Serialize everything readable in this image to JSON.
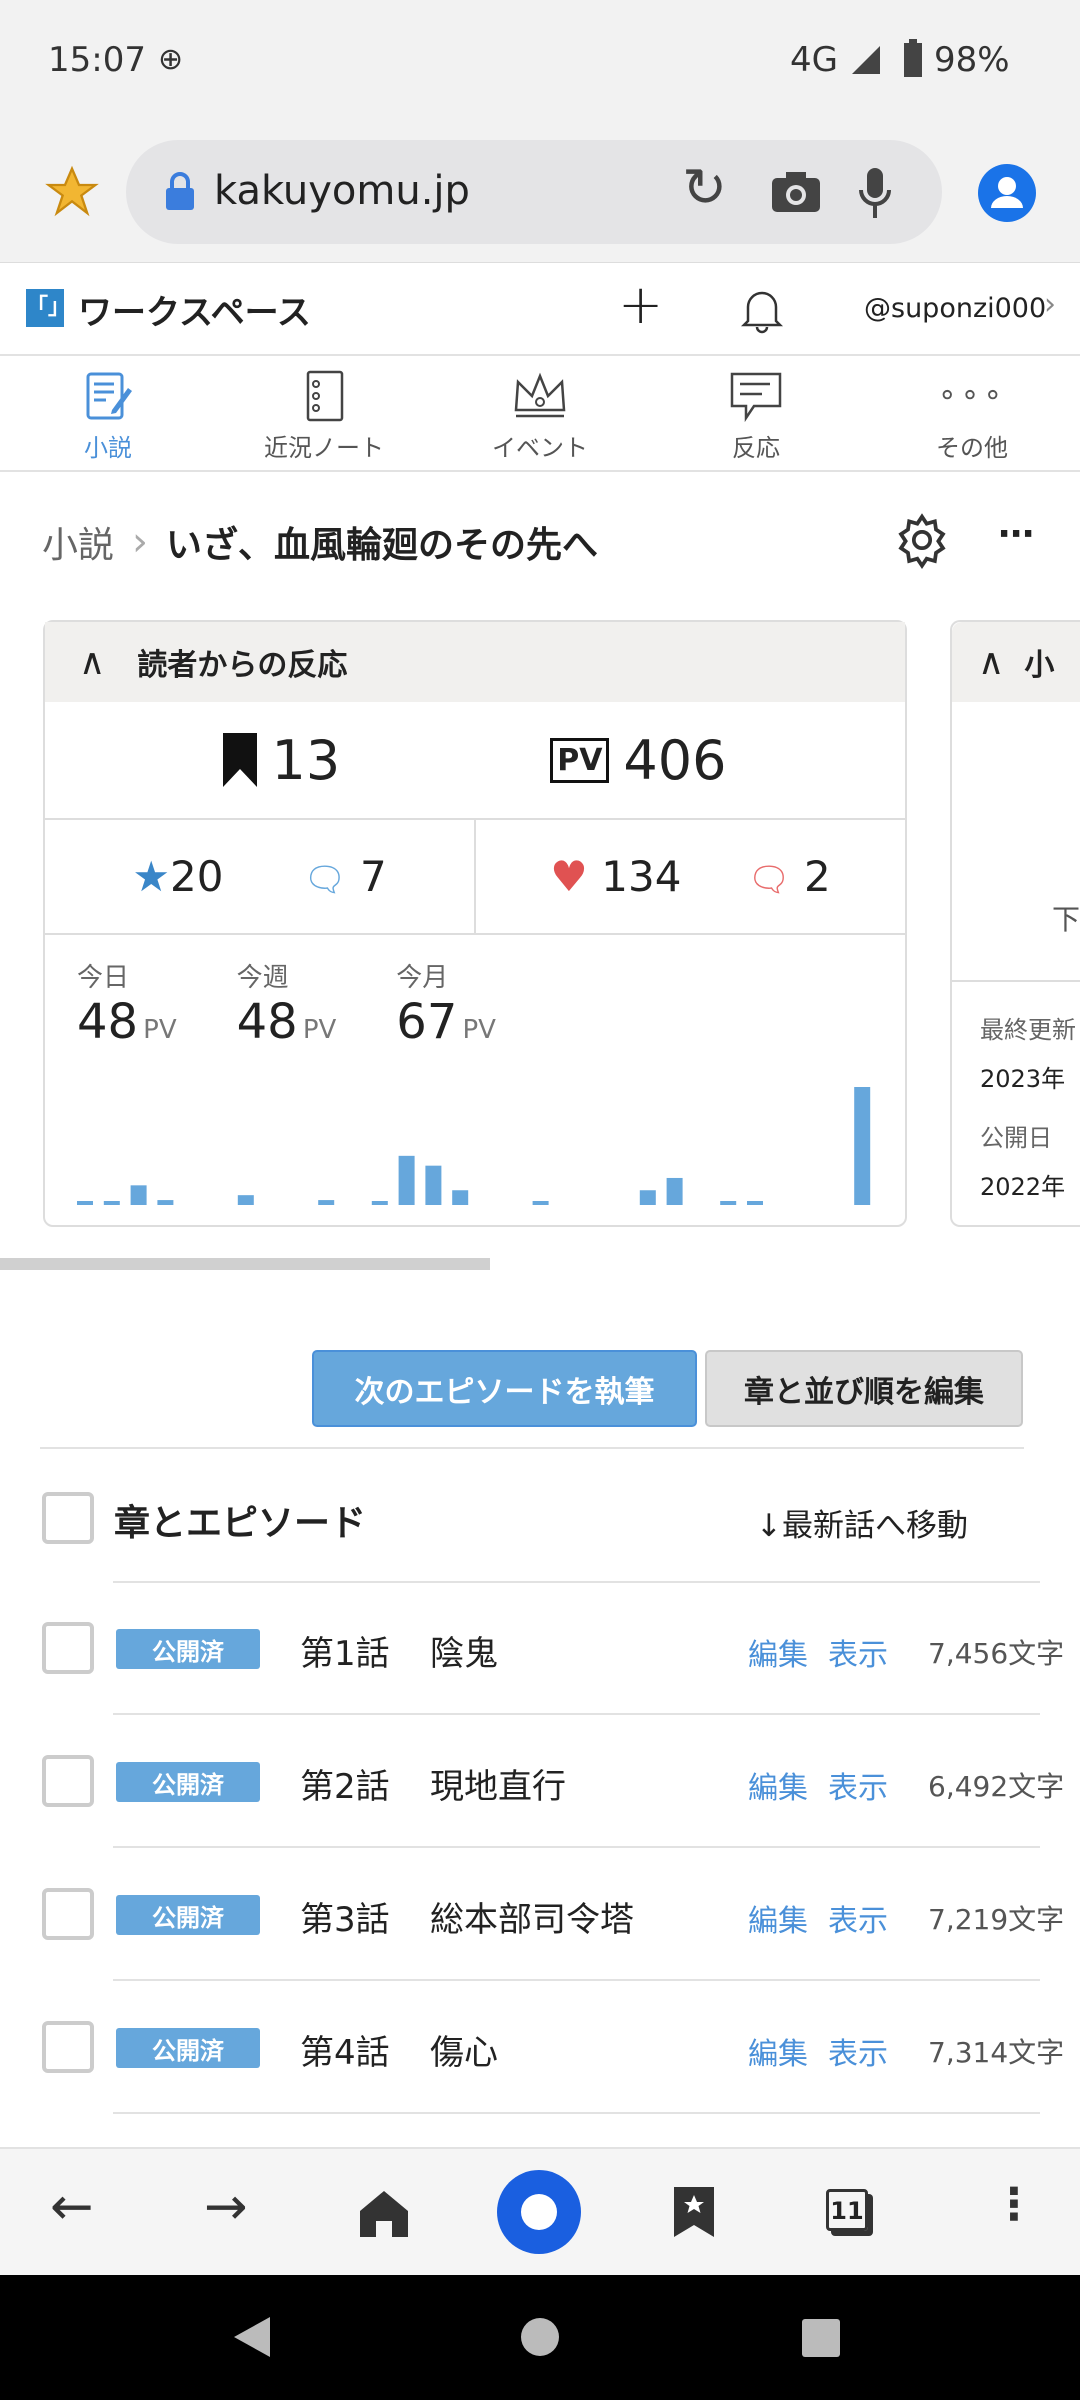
{
  "status_bar": {
    "time": "15:07",
    "network": "4G",
    "battery": "98%"
  },
  "browser": {
    "url": "kakuyomu.jp",
    "tab_count": "11"
  },
  "site_header": {
    "logo_text": "「」",
    "title": "ワークスペース",
    "username": "@suponzi000"
  },
  "nav": [
    {
      "label": "小説",
      "icon": "novel-icon",
      "active": true
    },
    {
      "label": "近況ノート",
      "icon": "notebook-icon"
    },
    {
      "label": "イベント",
      "icon": "crown-icon"
    },
    {
      "label": "反応",
      "icon": "comment-icon"
    },
    {
      "label": "その他",
      "icon": "more-icon"
    }
  ],
  "breadcrumb": {
    "root": "小説",
    "title": "いざ、血風輪廻のその先へ"
  },
  "reactions_card": {
    "title": "読者からの反応",
    "bookmarks": "13",
    "pv_total": "406",
    "pv_badge": "PV",
    "stars": "20",
    "reviews": "7",
    "hearts": "134",
    "comments": "2",
    "stats": [
      {
        "label": "今日",
        "value": "48",
        "unit": "PV"
      },
      {
        "label": "今週",
        "value": "48",
        "unit": "PV"
      },
      {
        "label": "今月",
        "value": "67",
        "unit": "PV"
      }
    ],
    "chart_data": {
      "type": "bar",
      "values": [
        1,
        1,
        8,
        2,
        0,
        0,
        4,
        0,
        0,
        2,
        0,
        1,
        20,
        16,
        6,
        0,
        0,
        1,
        0,
        0,
        0,
        6,
        11,
        0,
        1,
        1,
        0,
        0,
        0,
        48
      ],
      "color": "#66a7dc"
    }
  },
  "second_card": {
    "title_partial": "小",
    "row_partial": "下",
    "last_updated_label": "最終更新",
    "last_updated_partial": "2023年",
    "published_label": "公開日",
    "published_partial": "2022年"
  },
  "actions": {
    "write_next": "次のエピソードを執筆",
    "edit_order": "章と並び順を編集"
  },
  "episodes_header": {
    "title": "章とエピソード",
    "jump_latest": "↓最新話へ移動"
  },
  "episodes": [
    {
      "status": "公開済",
      "number": "第1話",
      "title": "陰鬼",
      "edit": "編集",
      "view": "表示",
      "chars": "7,456文字"
    },
    {
      "status": "公開済",
      "number": "第2話",
      "title": "現地直行",
      "edit": "編集",
      "view": "表示",
      "chars": "6,492文字"
    },
    {
      "status": "公開済",
      "number": "第3話",
      "title": "総本部司令塔",
      "edit": "編集",
      "view": "表示",
      "chars": "7,219文字"
    },
    {
      "status": "公開済",
      "number": "第4話",
      "title": "傷心",
      "edit": "編集",
      "view": "表示",
      "chars": "7,314文字"
    }
  ],
  "colors": {
    "accent": "#66a7dc",
    "link": "#4a90d9",
    "heart": "#e05252"
  }
}
